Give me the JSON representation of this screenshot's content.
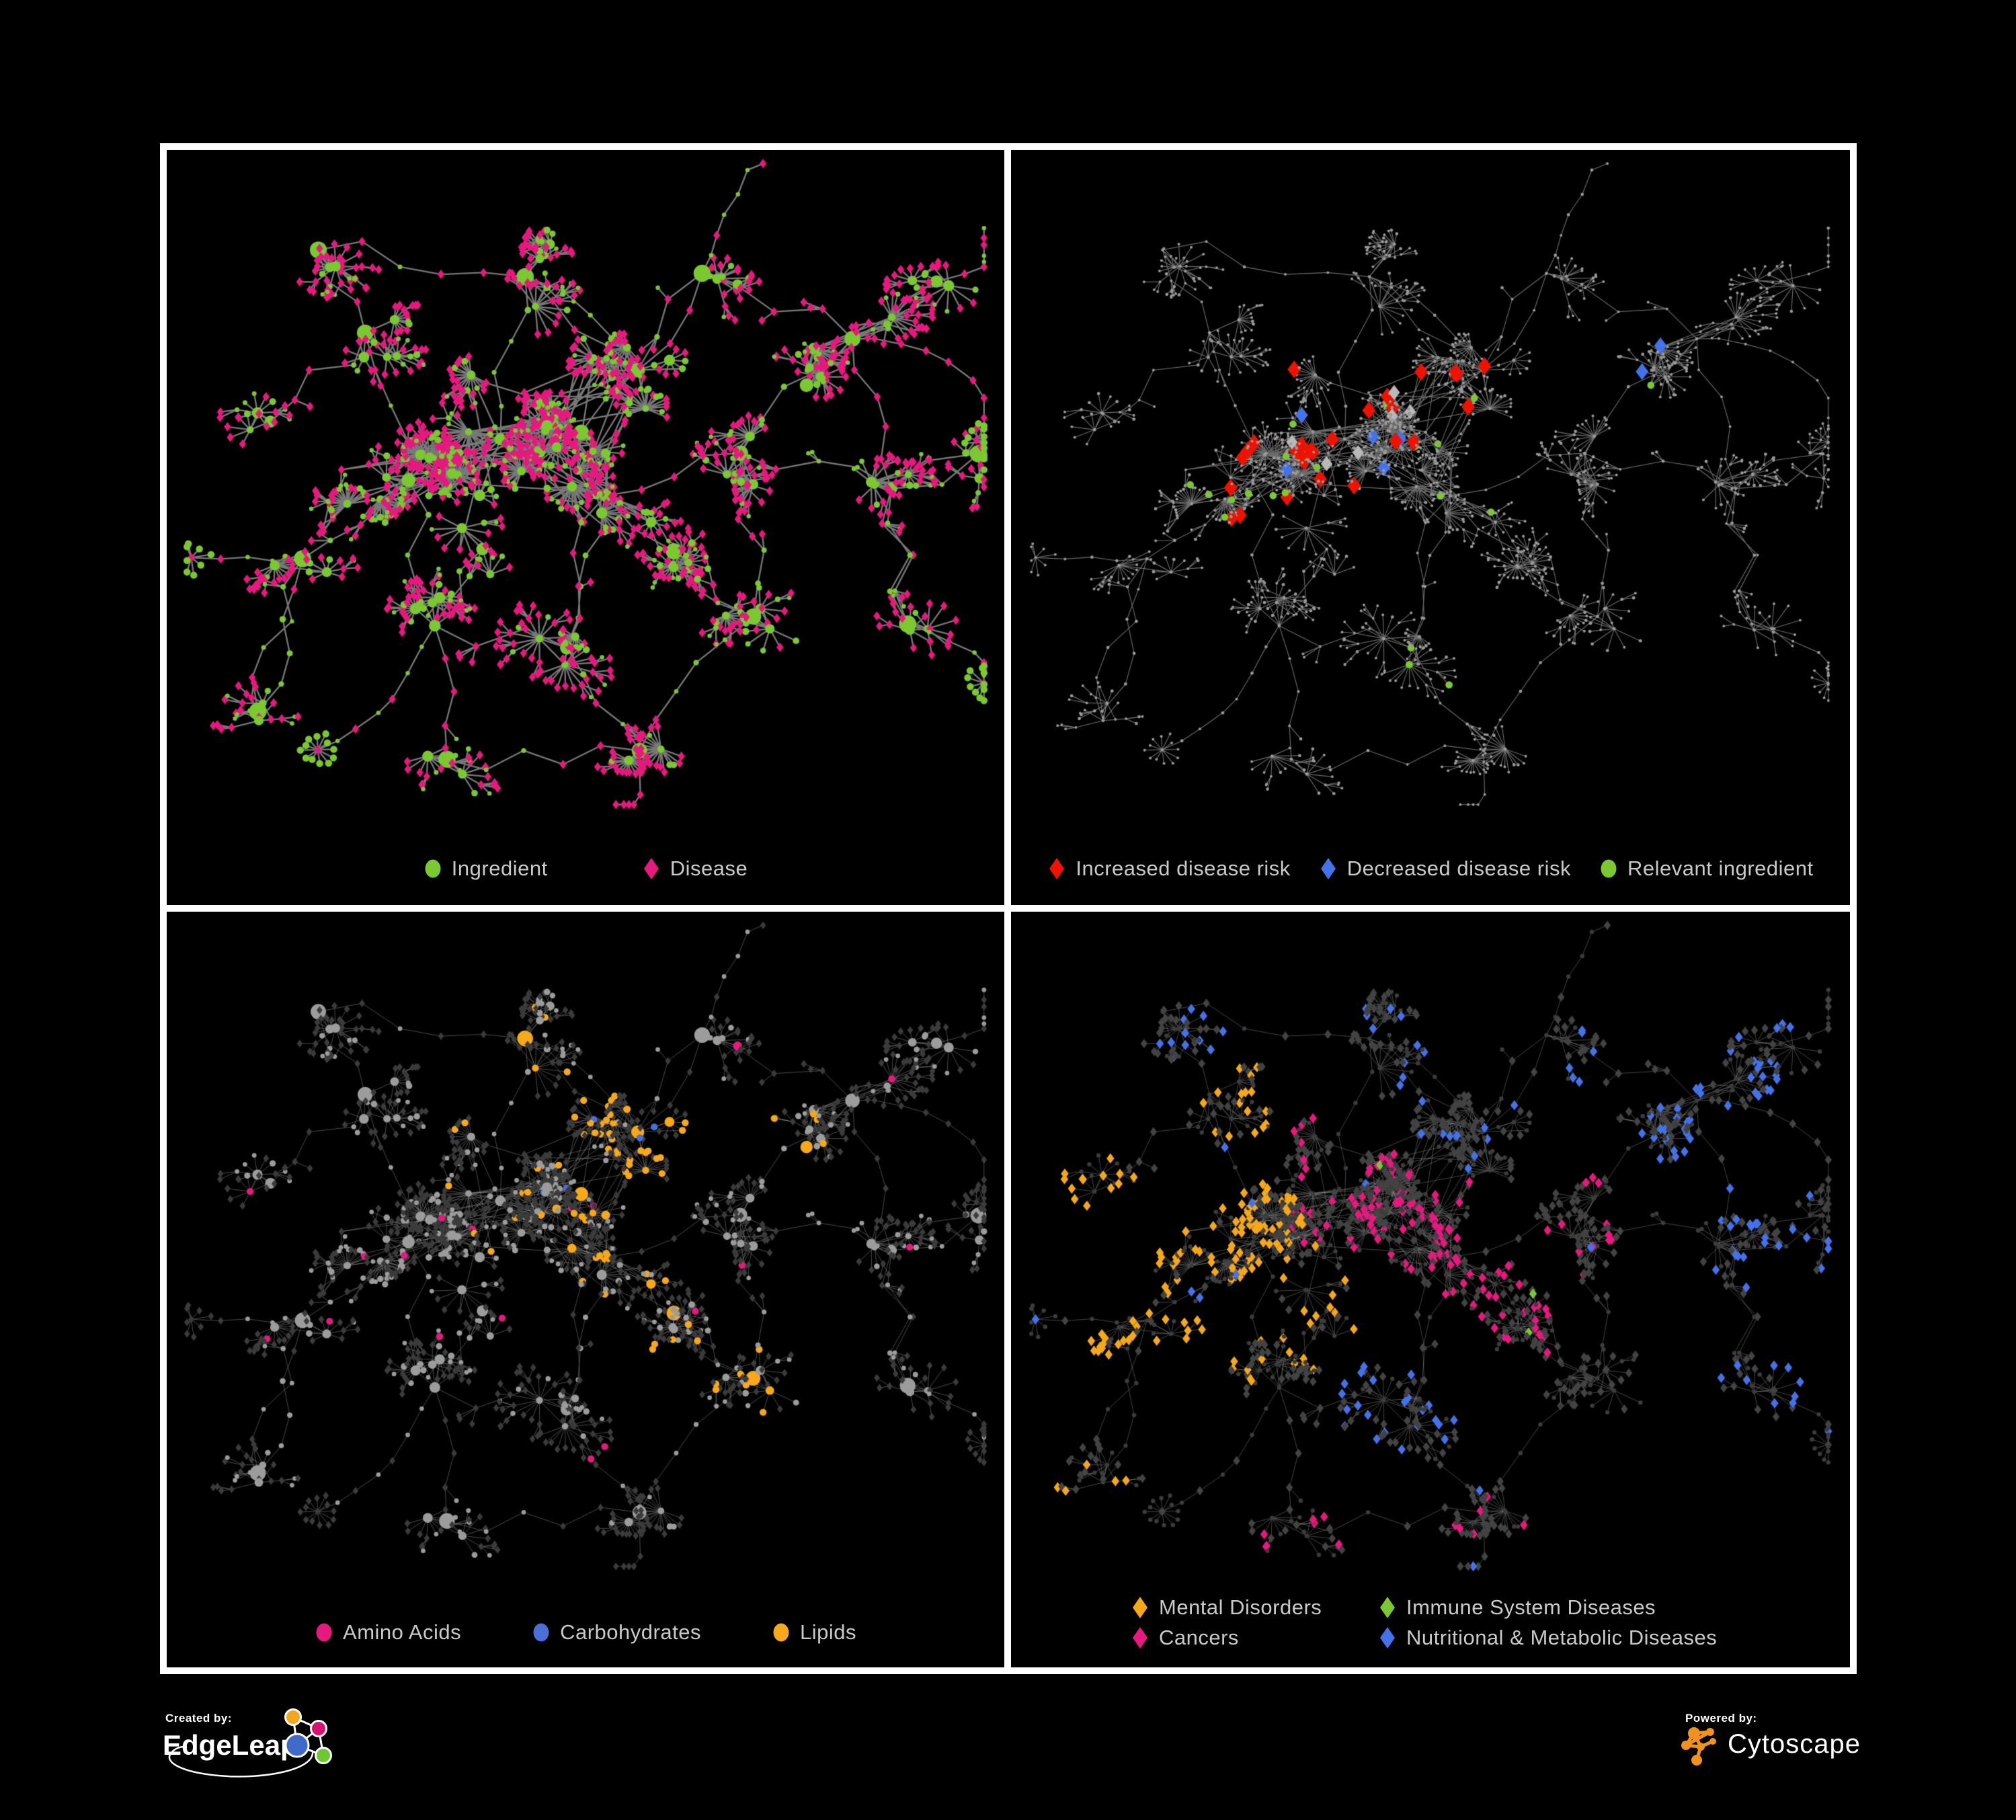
{
  "panels": [
    {
      "name": "ingredient-disease-network",
      "legend": [
        {
          "label": "Ingredient",
          "shape": "circle",
          "color": "#7CC832"
        },
        {
          "label": "Disease",
          "shape": "diamond",
          "color": "#E6197E"
        }
      ]
    },
    {
      "name": "disease-risk-network",
      "legend": [
        {
          "label": "Increased disease risk",
          "shape": "diamond",
          "color": "#ED1300"
        },
        {
          "label": "Decreased disease risk",
          "shape": "diamond",
          "color": "#4472E8"
        },
        {
          "label": "Relevant ingredient",
          "shape": "circle",
          "color": "#7CC832"
        }
      ]
    },
    {
      "name": "nutrient-class-network",
      "legend": [
        {
          "label": "Amino Acids",
          "shape": "circle",
          "color": "#E6197E"
        },
        {
          "label": "Carbohydrates",
          "shape": "circle",
          "color": "#4A6FD8"
        },
        {
          "label": "Lipids",
          "shape": "circle",
          "color": "#F7A81B"
        }
      ]
    },
    {
      "name": "disease-class-network",
      "legend": [
        {
          "label": "Mental Disorders",
          "shape": "diamond",
          "color": "#F5A81C"
        },
        {
          "label": "Immune System Diseases",
          "shape": "diamond",
          "color": "#7CC832"
        },
        {
          "label": "Cancers",
          "shape": "diamond",
          "color": "#E6197E"
        },
        {
          "label": "Nutritional & Metabolic Diseases",
          "shape": "diamond",
          "color": "#4472E8"
        }
      ]
    }
  ],
  "colors": {
    "ingredient": "#7CC832",
    "disease": "#E6197E",
    "increased": "#ED1300",
    "decreased": "#4472E8",
    "neutral": "#B9B9B9",
    "relevant": "#7CC832",
    "amino": "#E6197E",
    "carbs": "#4A6FD8",
    "lipids": "#F7A81B",
    "mental": "#F5A81C",
    "immune": "#7CC832",
    "cancers": "#E6197E",
    "nutritional": "#4472E8",
    "dim_node": "#9A9A9A",
    "dim_diamond": "#3B3B3B",
    "gray_circle": "#9C9C9C"
  },
  "footer": {
    "created_by": "Created by:",
    "edgeleap": "EdgeLeap",
    "powered_by": "Powered by:",
    "cytoscape": "Cytoscape"
  }
}
